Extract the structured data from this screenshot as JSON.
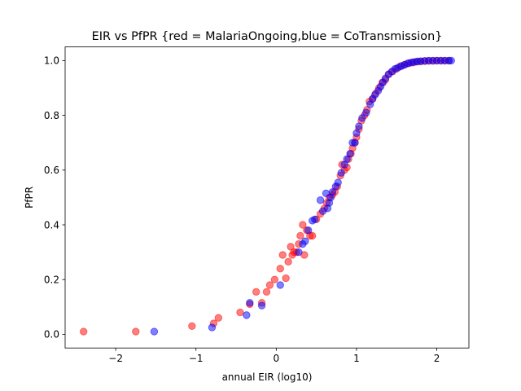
{
  "chart_data": {
    "type": "scatter",
    "title": "EIR vs PfPR {red = MalariaOngoing,blue = CoTransmission}",
    "xlabel": "annual EIR (log10)",
    "ylabel": "PfPR",
    "xlim": [
      -2.63,
      2.4
    ],
    "ylim": [
      -0.05,
      1.05
    ],
    "xticks": [
      -2,
      -1,
      0,
      1,
      2
    ],
    "xtick_labels": [
      "−2",
      "−1",
      "0",
      "1",
      "2"
    ],
    "yticks": [
      0.0,
      0.2,
      0.4,
      0.6,
      0.8,
      1.0
    ],
    "ytick_labels": [
      "0.0",
      "0.2",
      "0.4",
      "0.6",
      "0.8",
      "1.0"
    ],
    "grid": false,
    "legend": "none",
    "series": [
      {
        "color": "#ff0000",
        "x": [
          -2.4,
          -1.75,
          -1.05,
          -0.78,
          -0.72,
          -0.45,
          -0.33,
          -0.25,
          -0.18,
          -0.12,
          -0.08,
          -0.02,
          0.05,
          0.08,
          0.12,
          0.15,
          0.18,
          0.2,
          0.22,
          0.25,
          0.28,
          0.3,
          0.33,
          0.35,
          0.38,
          0.42,
          0.45,
          0.5,
          0.55,
          0.6,
          0.63,
          0.66,
          0.7,
          0.73,
          0.76,
          0.8,
          0.82,
          0.85,
          0.88,
          0.9,
          0.93,
          0.95,
          0.98,
          1.0,
          1.03,
          1.06,
          1.1,
          1.13,
          1.16,
          1.2,
          1.24,
          1.28,
          1.32,
          1.36,
          1.4,
          1.45,
          1.5,
          1.55,
          1.6,
          1.65,
          1.7,
          1.75,
          1.8,
          1.85,
          1.9,
          1.95,
          2.0,
          2.05,
          2.1,
          2.15
        ],
        "y": [
          0.01,
          0.01,
          0.03,
          0.04,
          0.06,
          0.08,
          0.11,
          0.155,
          0.115,
          0.155,
          0.18,
          0.2,
          0.24,
          0.29,
          0.205,
          0.265,
          0.32,
          0.29,
          0.3,
          0.3,
          0.33,
          0.36,
          0.4,
          0.29,
          0.38,
          0.36,
          0.36,
          0.42,
          0.44,
          0.46,
          0.48,
          0.5,
          0.51,
          0.52,
          0.54,
          0.58,
          0.62,
          0.6,
          0.61,
          0.64,
          0.66,
          0.68,
          0.7,
          0.72,
          0.75,
          0.78,
          0.8,
          0.82,
          0.85,
          0.86,
          0.88,
          0.9,
          0.92,
          0.93,
          0.95,
          0.96,
          0.97,
          0.98,
          0.985,
          0.99,
          0.993,
          0.996,
          0.997,
          0.998,
          0.999,
          0.999,
          1.0,
          1.0,
          1.0,
          1.0
        ]
      },
      {
        "color": "#0000ff",
        "x": [
          -1.52,
          -0.8,
          -0.37,
          -0.33,
          -0.18,
          0.05,
          0.28,
          0.33,
          0.36,
          0.4,
          0.45,
          0.48,
          0.55,
          0.58,
          0.62,
          0.64,
          0.66,
          0.68,
          0.7,
          0.74,
          0.77,
          0.81,
          0.85,
          0.88,
          0.92,
          0.95,
          0.98,
          1.0,
          1.03,
          1.07,
          1.12,
          1.17,
          1.2,
          1.23,
          1.27,
          1.3,
          1.33,
          1.36,
          1.4,
          1.44,
          1.48,
          1.52,
          1.56,
          1.6,
          1.64,
          1.68,
          1.72,
          1.76,
          1.8,
          1.85,
          1.9,
          1.95,
          2.0,
          2.05,
          2.1,
          2.15,
          2.18
        ],
        "y": [
          0.01,
          0.025,
          0.07,
          0.115,
          0.105,
          0.18,
          0.3,
          0.33,
          0.34,
          0.38,
          0.415,
          0.42,
          0.49,
          0.45,
          0.515,
          0.46,
          0.48,
          0.5,
          0.52,
          0.54,
          0.555,
          0.59,
          0.62,
          0.64,
          0.66,
          0.7,
          0.7,
          0.735,
          0.76,
          0.79,
          0.81,
          0.84,
          0.86,
          0.875,
          0.89,
          0.905,
          0.92,
          0.935,
          0.95,
          0.96,
          0.97,
          0.975,
          0.98,
          0.985,
          0.99,
          0.993,
          0.995,
          0.997,
          0.998,
          0.999,
          1.0,
          1.0,
          1.0,
          1.0,
          1.0,
          1.0,
          1.0
        ]
      }
    ]
  }
}
